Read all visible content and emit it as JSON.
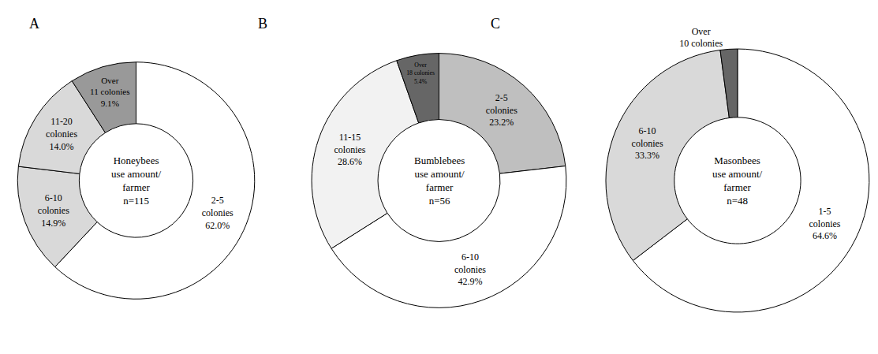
{
  "chart_data": [
    {
      "type": "pie",
      "label": "A",
      "title": [
        "Honeybees",
        "use amount/",
        "farmer",
        "n=115"
      ],
      "categories": [
        "2-5 colonies",
        "6-10 colonies",
        "11-20 colonies",
        "Over 11 colonies"
      ],
      "values": [
        62.0,
        14.9,
        14.0,
        9.1
      ],
      "value_labels": [
        "62.0%",
        "14.9%",
        "14.0%",
        "9.1%"
      ],
      "colors": [
        "#ffffff",
        "#d9d9d9",
        "#d9d9d9",
        "#999999"
      ],
      "data_labels": true
    },
    {
      "type": "pie",
      "label": "B",
      "title": [
        "Bumblebees",
        "use amount/",
        "farmer",
        "n=56"
      ],
      "categories": [
        "2-5 colonies",
        "6-10 colonies",
        "11-15 colonies",
        "Over 18 colonies"
      ],
      "values": [
        23.2,
        42.9,
        28.6,
        5.4
      ],
      "value_labels": [
        "23.2%",
        "42.9%",
        "28.6%",
        "5.4%"
      ],
      "colors": [
        "#bfbfbf",
        "#ffffff",
        "#f2f2f2",
        "#666666"
      ],
      "data_labels": true
    },
    {
      "type": "pie",
      "label": "C",
      "title": [
        "Masonbees",
        "use amount/",
        "farmer",
        "n=48"
      ],
      "categories": [
        "1-5 colonies",
        "6-10 colonies",
        "Over 10 colonies"
      ],
      "values": [
        64.6,
        33.3,
        2.1
      ],
      "value_labels": [
        "64.6%",
        "33.3%",
        null
      ],
      "colors": [
        "#ffffff",
        "#d9d9d9",
        "#666666"
      ],
      "data_labels": true
    }
  ]
}
